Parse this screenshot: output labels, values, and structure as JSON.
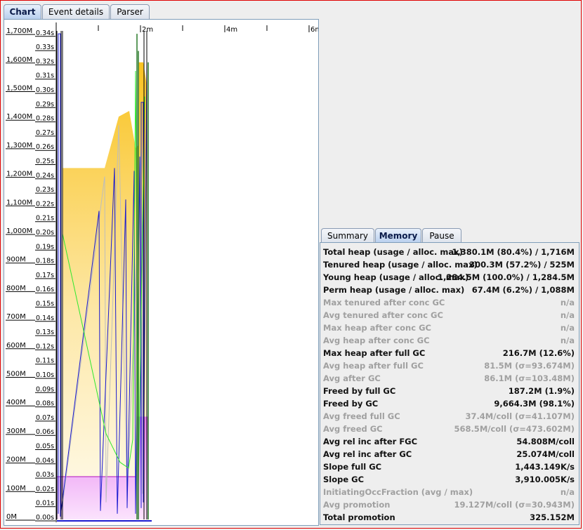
{
  "main_tabs": [
    "Chart",
    "Event details",
    "Parser"
  ],
  "stats_tabs": [
    "Summary",
    "Memory",
    "Pause"
  ],
  "heap_axis": [
    "0M",
    "100M",
    "200M",
    "300M",
    "400M",
    "500M",
    "600M",
    "700M",
    "800M",
    "900M",
    "1,000M",
    "1,100M",
    "1,200M",
    "1,300M",
    "1,400M",
    "1,500M",
    "1,600M",
    "1,700M"
  ],
  "pause_axis": [
    "0.00s",
    "0.01s",
    "0.02s",
    "0.03s",
    "0.04s",
    "0.05s",
    "0.06s",
    "0.07s",
    "0.08s",
    "0.09s",
    "0.10s",
    "0.11s",
    "0.12s",
    "0.13s",
    "0.14s",
    "0.15s",
    "0.16s",
    "0.17s",
    "0.18s",
    "0.19s",
    "0.20s",
    "0.21s",
    "0.22s",
    "0.23s",
    "0.24s",
    "0.25s",
    "0.26s",
    "0.27s",
    "0.28s",
    "0.29s",
    "0.30s",
    "0.31s",
    "0.32s",
    "0.33s",
    "0.34s"
  ],
  "time_axis": [
    "2m",
    "4m",
    "6m"
  ],
  "colors": {
    "total_heap": "#f9c321",
    "tenured": "#e67cf0",
    "young_line": "#1b1bd0",
    "gc_line": "#2ee82e",
    "full_gc": "#2a7a2a"
  },
  "stats": [
    {
      "label": "Total heap (usage / alloc. max)",
      "value": "1,380.1M (80.4%) / 1,716M",
      "active": true
    },
    {
      "label": "Tenured heap (usage / alloc. max)",
      "value": "300.3M (57.2%) / 525M",
      "active": true
    },
    {
      "label": "Young heap (usage / alloc. max)",
      "value": "1,284.5M (100.0%) / 1,284.5M",
      "active": true
    },
    {
      "label": "Perm heap (usage / alloc. max)",
      "value": "67.4M (6.2%) / 1,088M",
      "active": true
    },
    {
      "label": "Max tenured after conc GC",
      "value": "n/a",
      "active": false
    },
    {
      "label": "Avg tenured after conc GC",
      "value": "n/a",
      "active": false
    },
    {
      "label": "Max heap after conc GC",
      "value": "n/a",
      "active": false
    },
    {
      "label": "Avg heap after conc GC",
      "value": "n/a",
      "active": false
    },
    {
      "label": "Max heap after full GC",
      "value": "216.7M (12.6%)",
      "active": true
    },
    {
      "label": "Avg heap after full GC",
      "value": "81.5M (σ=93.674M)",
      "active": false
    },
    {
      "label": "Avg after GC",
      "value": "86.1M (σ=103.48M)",
      "active": false
    },
    {
      "label": "Freed by full GC",
      "value": "187.2M (1.9%)",
      "active": true
    },
    {
      "label": "Freed by GC",
      "value": "9,664.3M (98.1%)",
      "active": true
    },
    {
      "label": "Avg freed full GC",
      "value": "37.4M/coll (σ=41.107M)",
      "active": false
    },
    {
      "label": "Avg freed GC",
      "value": "568.5M/coll (σ=473.602M)",
      "active": false
    },
    {
      "label": "Avg rel inc after FGC",
      "value": "54.808M/coll",
      "active": true
    },
    {
      "label": "Avg rel inc after GC",
      "value": "25.074M/coll",
      "active": true
    },
    {
      "label": "Slope full GC",
      "value": "1,443.149K/s",
      "active": true
    },
    {
      "label": "Slope GC",
      "value": "3,910.005K/s",
      "active": true
    },
    {
      "label": "InitiatingOccFraction (avg / max)",
      "value": "n/a",
      "active": false
    },
    {
      "label": "Avg promotion",
      "value": "19.127M/coll (σ=30.943M)",
      "active": false
    },
    {
      "label": "Total promotion",
      "value": "325.152M",
      "active": true
    }
  ]
}
